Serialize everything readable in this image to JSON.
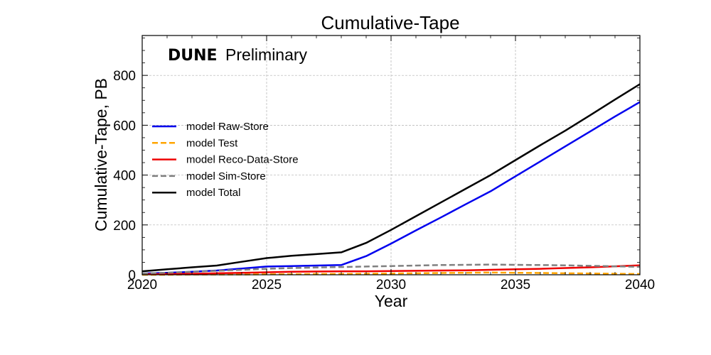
{
  "chart_data": {
    "type": "line",
    "title": "Cumulative-Tape",
    "xlabel": "Year",
    "ylabel": "Cumulative-Tape, PB",
    "xlim": [
      2020,
      2040
    ],
    "ylim": [
      0,
      960
    ],
    "xticks": [
      "2020",
      "2025",
      "2030",
      "2035",
      "2040"
    ],
    "yticks": [
      "0",
      "200",
      "400",
      "600",
      "800"
    ],
    "grid": true,
    "legend_position": "center-left",
    "annotation": {
      "bold": "DUNE",
      "normal": "Preliminary"
    },
    "series": [
      {
        "name": "model Raw-Store",
        "color": "#0000ee",
        "style": "solid",
        "x": [
          2020,
          2021,
          2022,
          2023,
          2024,
          2025,
          2026,
          2027,
          2028,
          2029,
          2030,
          2031,
          2032,
          2033,
          2034,
          2035,
          2036,
          2037,
          2038,
          2039,
          2040
        ],
        "y": [
          5,
          8,
          12,
          17,
          25,
          33,
          35,
          37,
          39,
          75,
          125,
          178,
          230,
          283,
          335,
          395,
          455,
          515,
          575,
          635,
          693
        ]
      },
      {
        "name": "model Test",
        "color": "#ffa500",
        "style": "dashed",
        "x": [
          2020,
          2021,
          2022,
          2023,
          2024,
          2025,
          2026,
          2027,
          2028,
          2029,
          2030,
          2031,
          2032,
          2033,
          2034,
          2035,
          2036,
          2037,
          2038,
          2039,
          2040
        ],
        "y": [
          0,
          0,
          1,
          1,
          1,
          2,
          2,
          3,
          3,
          4,
          5,
          6,
          7,
          8,
          9,
          8,
          7,
          6,
          5,
          4,
          3
        ]
      },
      {
        "name": "model Reco-Data-Store",
        "color": "#ee0000",
        "style": "solid",
        "x": [
          2020,
          2021,
          2022,
          2023,
          2024,
          2025,
          2026,
          2027,
          2028,
          2029,
          2030,
          2031,
          2032,
          2033,
          2034,
          2035,
          2036,
          2037,
          2038,
          2039,
          2040
        ],
        "y": [
          2,
          3,
          4,
          6,
          8,
          10,
          12,
          13,
          14,
          14,
          15,
          16,
          17,
          18,
          20,
          22,
          24,
          27,
          30,
          34,
          38
        ]
      },
      {
        "name": "model Sim-Store",
        "color": "#808080",
        "style": "dashed",
        "x": [
          2020,
          2021,
          2022,
          2023,
          2024,
          2025,
          2026,
          2027,
          2028,
          2029,
          2030,
          2031,
          2032,
          2033,
          2034,
          2035,
          2036,
          2037,
          2038,
          2039,
          2040
        ],
        "y": [
          5,
          8,
          12,
          16,
          20,
          24,
          27,
          29,
          31,
          33,
          35,
          37,
          39,
          40,
          41,
          40,
          39,
          38,
          36,
          34,
          32
        ]
      },
      {
        "name": "model Total",
        "color": "#000000",
        "style": "solid",
        "x": [
          2020,
          2021,
          2022,
          2023,
          2024,
          2025,
          2026,
          2027,
          2028,
          2029,
          2030,
          2031,
          2032,
          2033,
          2034,
          2035,
          2036,
          2037,
          2038,
          2039,
          2040
        ],
        "y": [
          14,
          22,
          30,
          37,
          52,
          67,
          76,
          83,
          90,
          128,
          180,
          235,
          290,
          345,
          400,
          460,
          520,
          578,
          640,
          703,
          765
        ]
      }
    ]
  }
}
